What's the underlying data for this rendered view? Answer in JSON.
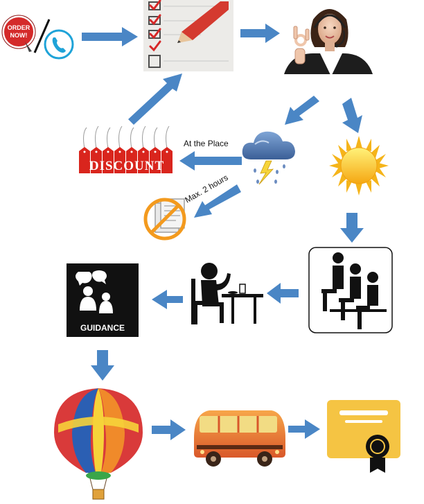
{
  "labels": {
    "order_now": "ORDER NOW!",
    "discount": "DISCOUNT",
    "at_the_place": "At the Place",
    "max_hours": "Max. 2 hours",
    "guidance": "GUIDANCE"
  },
  "icons": [
    "order-now-badge-icon",
    "phone-icon",
    "checklist-icon",
    "call-center-operator-icon",
    "discount-tags-icon",
    "storm-cloud-icon",
    "sun-icon",
    "no-document-icon",
    "waiting-room-icon",
    "dining-person-icon",
    "guidance-icon",
    "hot-air-balloon-icon",
    "bus-icon",
    "certificate-icon"
  ],
  "colors": {
    "arrow": "#4a86c5",
    "order_red": "#d42a2a",
    "phone_blue": "#1fa3d8",
    "tag_red": "#d9251d",
    "sun_yellow": "#f7c51e",
    "no_sign_orange": "#f39a1e",
    "certificate_yellow": "#f5c443",
    "bus_orange": "#e8772a"
  }
}
